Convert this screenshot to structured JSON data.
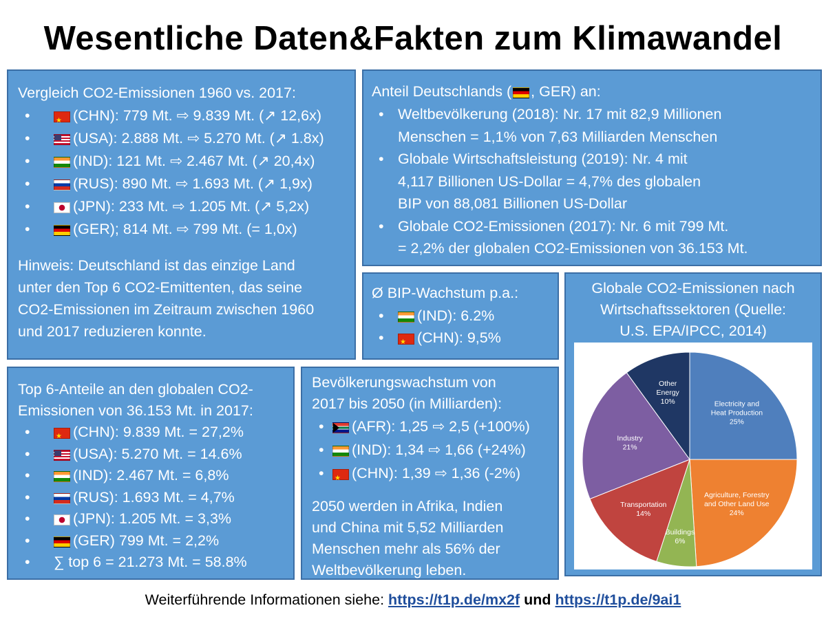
{
  "title": "Wesentliche Daten&Fakten zum Klimawandel",
  "box_emissions": {
    "heading": "Vergleich CO2-Emissionen 1960 vs. 2017:",
    "items": [
      {
        "flag": "china-flag-icon",
        "text": "(CHN): 779 Mt. ⇨ 9.839 Mt. (↗ 12,6x)"
      },
      {
        "flag": "usa-flag-icon",
        "text": "(USA): 2.888 Mt. ⇨ 5.270 Mt. (↗ 1.8x)"
      },
      {
        "flag": "india-flag-icon",
        "text": "(IND): 121 Mt. ⇨ 2.467 Mt. (↗ 20,4x)"
      },
      {
        "flag": "russia-flag-icon",
        "text": "(RUS): 890 Mt. ⇨ 1.693 Mt. (↗ 1,9x)"
      },
      {
        "flag": "japan-flag-icon",
        "text": "(JPN): 233 Mt. ⇨ 1.205 Mt. (↗ 5,2x)"
      },
      {
        "flag": "germany-flag-icon",
        "text": "(GER); 814 Mt. ⇨ 799 Mt. (= 1,0x)"
      }
    ],
    "note_lines": [
      "Hinweis: Deutschland ist das einzige Land",
      "unter den Top 6 CO2-Emittenten, das seine",
      "CO2-Emissionen im Zeitraum zwischen 1960",
      "und 2017 reduzieren konnte."
    ]
  },
  "box_germany": {
    "heading_pre": "Anteil Deutschlands (",
    "heading_post": ", GER) an:",
    "items": [
      {
        "lines": [
          "Weltbevölkerung (2018): Nr. 17 mit 82,9 Millionen",
          "Menschen = 1,1% von 7,63 Milliarden Menschen"
        ]
      },
      {
        "lines": [
          "Globale Wirtschaftsleistung (2019): Nr. 4 mit",
          "4,117 Billionen US-Dollar = 4,7% des globalen",
          "BIP von 88,081 Billionen US-Dollar"
        ]
      },
      {
        "lines": [
          "Globale CO2-Emissionen (2017): Nr. 6 mit 799 Mt.",
          "= 2,2% der globalen CO2-Emissionen von 36.153 Mt."
        ]
      }
    ]
  },
  "box_bip": {
    "heading": "Ø BIP-Wachstum p.a.:",
    "items": [
      {
        "flag": "india-flag-icon",
        "text": "(IND): 6.2%"
      },
      {
        "flag": "china-flag-icon",
        "text": "(CHN): 9,5%"
      }
    ]
  },
  "box_top6": {
    "heading_lines": [
      "Top 6-Anteile an den globalen CO2-",
      "Emissionen von 36.153 Mt. in 2017:"
    ],
    "items": [
      {
        "flag": "china-flag-icon",
        "text": "(CHN): 9.839 Mt. = 27,2%"
      },
      {
        "flag": "usa-flag-icon",
        "text": "(USA): 5.270 Mt. = 14.6%"
      },
      {
        "flag": "india-flag-icon",
        "text": "(IND): 2.467 Mt. = 6,8%"
      },
      {
        "flag": "russia-flag-icon",
        "text": "(RUS): 1.693 Mt. = 4,7%"
      },
      {
        "flag": "japan-flag-icon",
        "text": "(JPN): 1.205 Mt. = 3,3%"
      },
      {
        "flag": "germany-flag-icon",
        "text": "(GER) 799 Mt. = 2,2%"
      },
      {
        "flag": "",
        "text": "∑ top 6 = 21.273 Mt. = 58.8%"
      }
    ]
  },
  "box_population": {
    "heading_lines": [
      "Bevölkerungswachstum von",
      "2017 bis 2050 (in Milliarden):"
    ],
    "items": [
      {
        "flag": "south-africa-flag-icon",
        "text": "(AFR): 1,25 ⇨ 2,5 (+100%)"
      },
      {
        "flag": "india-flag-icon",
        "text": "(IND): 1,34 ⇨ 1,66 (+24%)"
      },
      {
        "flag": "china-flag-icon",
        "text": "(CHN): 1,39 ⇨ 1,36 (-2%)"
      }
    ],
    "note_lines": [
      "2050 werden in Afrika, Indien",
      "und China mit 5,52 Milliarden",
      "Menschen mehr als 56% der",
      "Weltbevölkerung leben."
    ]
  },
  "footer": {
    "prefix": "Weiterführende Informationen siehe: ",
    "link1": "https://t1p.de/mx2f",
    "conj": " und ",
    "link2": "https://t1p.de/9ai1"
  },
  "chart_data": {
    "type": "pie",
    "title": "Globale CO2-Emissionen nach Wirtschaftssektoren (Quelle: U.S. EPA/IPCC, 2014)",
    "title_lines": [
      "Globale CO2-Emissionen nach",
      "Wirtschaftssektoren (Quelle:",
      "U.S. EPA/IPCC, 2014)"
    ],
    "slices": [
      {
        "label_lines": [
          "Electricity and",
          "Heat Production"
        ],
        "pct_label": "25%",
        "value": 25,
        "color": "#4f7fbd"
      },
      {
        "label_lines": [
          "Agriculture, Forestry",
          "and Other Land Use"
        ],
        "pct_label": "24%",
        "value": 24,
        "color": "#ee8131"
      },
      {
        "label_lines": [
          "Buildings"
        ],
        "pct_label": "6%",
        "value": 6,
        "color": "#93b553"
      },
      {
        "label_lines": [
          "Transportation"
        ],
        "pct_label": "14%",
        "value": 14,
        "color": "#c0443f"
      },
      {
        "label_lines": [
          "Industry"
        ],
        "pct_label": "21%",
        "value": 21,
        "color": "#7d5ea2"
      },
      {
        "label_lines": [
          "Other",
          "Energy"
        ],
        "pct_label": "10%",
        "value": 10,
        "color": "#1f3764"
      }
    ]
  },
  "colors": {
    "box_fill": "#5b9bd5",
    "box_border": "#3b6ea5",
    "link": "#1f4e9c"
  }
}
